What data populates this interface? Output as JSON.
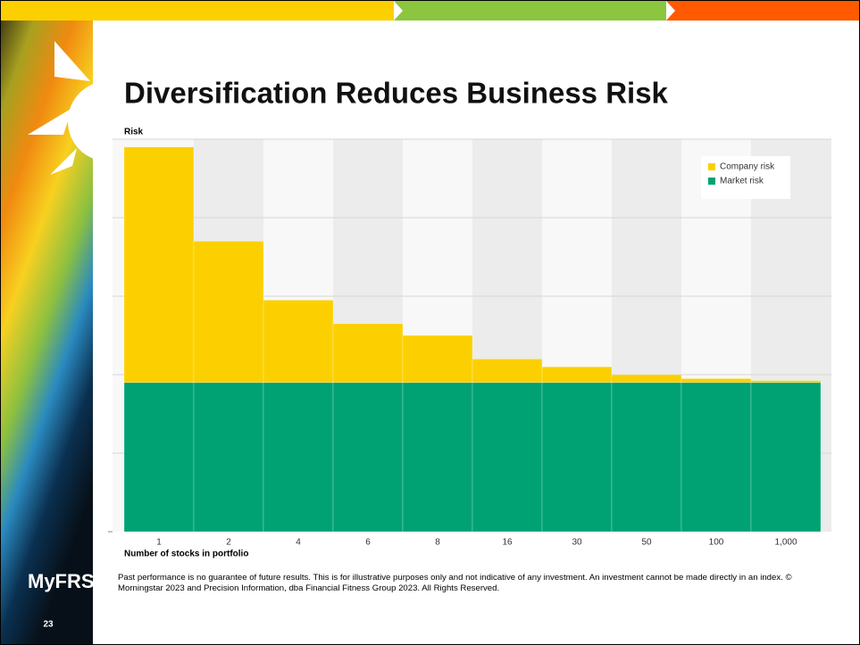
{
  "slide": {
    "title": "Diversification Reduces Business Risk",
    "logo": "MyFRS",
    "page_number": "23",
    "footnote": "Past performance is no guarantee of future results. This is for illustrative purposes only and not indicative of any investment. An investment cannot be made directly in an index. © Morningstar 2023 and Precision Information, dba Financial Fitness Group 2023. All Rights Reserved."
  },
  "chart_data": {
    "type": "stacked_bar",
    "y_label": "Risk",
    "x_label": "Number of stocks in portfolio",
    "categories": [
      "1",
      "2",
      "4",
      "6",
      "8",
      "16",
      "30",
      "50",
      "100",
      "1,000"
    ],
    "series": [
      {
        "name": "Company risk",
        "color": "#fcd000",
        "values": [
          60,
          36,
          21,
          15,
          12,
          6,
          4,
          2,
          1,
          0.5
        ]
      },
      {
        "name": "Market risk",
        "color": "#00a274",
        "values": [
          38,
          38,
          38,
          38,
          38,
          38,
          38,
          38,
          38,
          38
        ]
      }
    ],
    "ylim": [
      0,
      100
    ],
    "gridlines": [
      20,
      40,
      60,
      80,
      100
    ],
    "legend": "top-right"
  }
}
